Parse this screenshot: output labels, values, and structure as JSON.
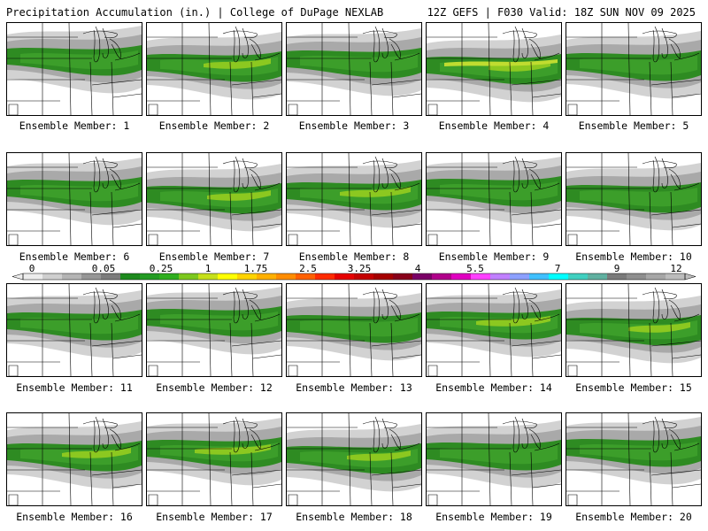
{
  "header": {
    "title": "Precipitation Accumulation (in.) | College of DuPage NEXLAB",
    "run_info": "12Z GEFS | F030 Valid: 18Z SUN NOV 09 2025"
  },
  "panels": [
    {
      "label": "Ensemble Member: 1",
      "intensity": 1
    },
    {
      "label": "Ensemble Member: 2",
      "intensity": 2
    },
    {
      "label": "Ensemble Member: 3",
      "intensity": 1
    },
    {
      "label": "Ensemble Member: 4",
      "intensity": 3
    },
    {
      "label": "Ensemble Member: 5",
      "intensity": 1
    },
    {
      "label": "Ensemble Member: 6",
      "intensity": 1
    },
    {
      "label": "Ensemble Member: 7",
      "intensity": 2
    },
    {
      "label": "Ensemble Member: 8",
      "intensity": 2
    },
    {
      "label": "Ensemble Member: 9",
      "intensity": 1
    },
    {
      "label": "Ensemble Member: 10",
      "intensity": 1
    },
    {
      "label": "Ensemble Member: 11",
      "intensity": 1
    },
    {
      "label": "Ensemble Member: 12",
      "intensity": 1
    },
    {
      "label": "Ensemble Member: 13",
      "intensity": 1
    },
    {
      "label": "Ensemble Member: 14",
      "intensity": 2
    },
    {
      "label": "Ensemble Member: 15",
      "intensity": 2
    },
    {
      "label": "Ensemble Member: 16",
      "intensity": 2
    },
    {
      "label": "Ensemble Member: 17",
      "intensity": 2
    },
    {
      "label": "Ensemble Member: 18",
      "intensity": 2
    },
    {
      "label": "Ensemble Member: 19",
      "intensity": 1
    },
    {
      "label": "Ensemble Member: 20",
      "intensity": 1
    }
  ],
  "colorbar": {
    "tick_labels": [
      "0",
      "0.05",
      "0.25",
      "1",
      "1.75",
      "2.5",
      "3.25",
      "4",
      "5.5",
      "7",
      "9",
      "12"
    ],
    "colors": [
      "#ececec",
      "#cfcfcf",
      "#b4b4b4",
      "#969696",
      "#7c7c7c",
      "#1d8a1d",
      "#239b23",
      "#2fae1f",
      "#7cc81e",
      "#c6e01a",
      "#ffff00",
      "#ffd400",
      "#ffb000",
      "#ff8c00",
      "#ff6000",
      "#ff2b00",
      "#e60000",
      "#c40000",
      "#a50000",
      "#88001a",
      "#7a0066",
      "#b0008a",
      "#e000c0",
      "#ff40ff",
      "#c080ff",
      "#8ca0ff",
      "#40c0ff",
      "#00ffff",
      "#40d0c0",
      "#60b0a0",
      "#7a7a7a",
      "#8e8e8e",
      "#a6a6a6",
      "#bcbcbc"
    ]
  },
  "palette": {
    "light_gray": "#d2d2d2",
    "mid_gray": "#a9a9a9",
    "dark_green": "#2e8b22",
    "green": "#3c9e2a",
    "lime": "#8cc820",
    "yellow_green": "#c0dc30",
    "borders": "#000000"
  }
}
